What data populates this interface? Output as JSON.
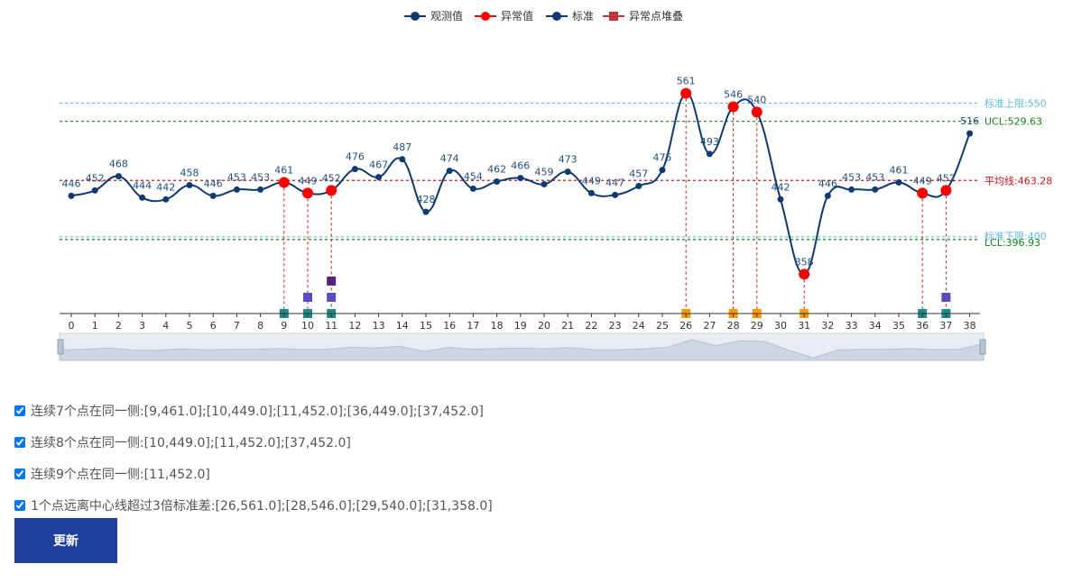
{
  "legend": [
    {
      "label": "观测值",
      "color": "#0e3a73",
      "marker": "circle"
    },
    {
      "label": "异常值",
      "color": "#ff0000",
      "marker": "circle"
    },
    {
      "label": "标准",
      "color": "#0e3a73",
      "marker": "circle"
    },
    {
      "label": "异常点堆叠",
      "color": "#c23531",
      "marker": "square"
    }
  ],
  "chart_data": {
    "type": "line",
    "x": [
      0,
      1,
      2,
      3,
      4,
      5,
      6,
      7,
      8,
      9,
      10,
      11,
      12,
      13,
      14,
      15,
      16,
      17,
      18,
      19,
      20,
      21,
      22,
      23,
      24,
      25,
      26,
      27,
      28,
      29,
      30,
      31,
      32,
      33,
      34,
      35,
      36,
      37,
      38
    ],
    "categories": [
      "0",
      "1",
      "2",
      "3",
      "4",
      "5",
      "6",
      "7",
      "8",
      "9",
      "10",
      "11",
      "12",
      "13",
      "14",
      "15",
      "16",
      "17",
      "18",
      "19",
      "20",
      "21",
      "22",
      "23",
      "24",
      "25",
      "26",
      "27",
      "28",
      "29",
      "30",
      "31",
      "32",
      "33",
      "34",
      "35",
      "36",
      "37",
      "38"
    ],
    "series": [
      {
        "name": "观测值",
        "values": [
          446,
          452,
          468,
          444,
          442,
          458,
          446,
          453,
          453,
          461,
          449,
          452,
          476,
          467,
          487,
          428,
          474,
          454,
          462,
          466,
          459,
          473,
          449,
          447,
          457,
          475,
          561,
          493,
          546,
          540,
          442,
          358,
          446,
          453,
          453,
          461,
          449,
          452,
          516
        ],
        "color": "#0e3a73",
        "smooth": true
      }
    ],
    "anomalies": [
      {
        "x": 9,
        "value": 461
      },
      {
        "x": 10,
        "value": 449
      },
      {
        "x": 11,
        "value": 452
      },
      {
        "x": 26,
        "value": 561
      },
      {
        "x": 28,
        "value": 546
      },
      {
        "x": 29,
        "value": 540
      },
      {
        "x": 31,
        "value": 358
      },
      {
        "x": 36,
        "value": 449
      },
      {
        "x": 37,
        "value": 452
      }
    ],
    "anomaly_stack": [
      {
        "x": 9,
        "levels": [
          "teal"
        ]
      },
      {
        "x": 10,
        "levels": [
          "teal",
          "purple"
        ]
      },
      {
        "x": 11,
        "levels": [
          "teal",
          "purple",
          "darkpurple"
        ]
      },
      {
        "x": 26,
        "levels": [
          "orange"
        ]
      },
      {
        "x": 28,
        "levels": [
          "orange"
        ]
      },
      {
        "x": 29,
        "levels": [
          "orange"
        ]
      },
      {
        "x": 31,
        "levels": [
          "orange"
        ]
      },
      {
        "x": 36,
        "levels": [
          "teal"
        ]
      },
      {
        "x": 37,
        "levels": [
          "teal",
          "purple"
        ]
      }
    ],
    "stack_colors": {
      "teal": "#1a8a8a",
      "purple": "#5a4bc0",
      "darkpurple": "#5c1f7a",
      "orange": "#ff9800"
    },
    "reference_lines": [
      {
        "label": "标准上限:550",
        "value": 550,
        "color": "#5bc0de"
      },
      {
        "label": "UCL:529.63",
        "value": 529.63,
        "color": "#118811"
      },
      {
        "label": "平均线:463.28",
        "value": 463.28,
        "color": "#dd1111"
      },
      {
        "label": "标准下限:400",
        "value": 400,
        "color": "#5bc0de"
      },
      {
        "label": "LCL:396.93",
        "value": 396.93,
        "color": "#118811"
      }
    ],
    "ylim": [
      330,
      590
    ],
    "xlabel": "",
    "ylabel": "",
    "grid": false,
    "legend_position": "top-center",
    "data_zoom": {
      "start": 0,
      "end": 100
    }
  },
  "rules": [
    {
      "label": "连续7个点在同一侧:[9,461.0];[10,449.0];[11,452.0];[36,449.0];[37,452.0]",
      "checked": true
    },
    {
      "label": "连续8个点在同一侧:[10,449.0];[11,452.0];[37,452.0]",
      "checked": true
    },
    {
      "label": "连续9个点在同一侧:[11,452.0]",
      "checked": true
    },
    {
      "label": "1个点远离中心线超过3倍标准差:[26,561.0];[28,546.0];[29,540.0];[31,358.0]",
      "checked": true
    }
  ],
  "update_button": {
    "label": "更新"
  }
}
